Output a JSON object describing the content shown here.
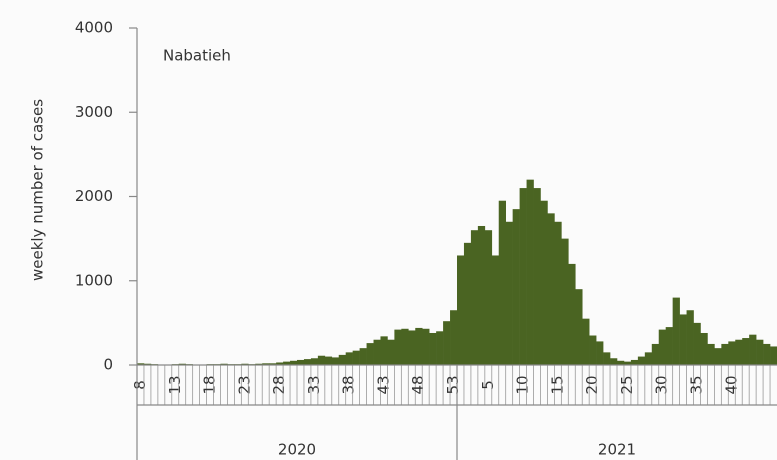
{
  "chart_data": {
    "type": "bar",
    "title": "Nabatieh",
    "ylabel": "weekly number of cases",
    "x_groups": [
      "2020",
      "2021"
    ],
    "categories": [
      "8",
      null,
      null,
      null,
      null,
      "13",
      null,
      null,
      null,
      null,
      "18",
      null,
      null,
      null,
      null,
      "23",
      null,
      null,
      null,
      null,
      "28",
      null,
      null,
      null,
      null,
      "33",
      null,
      null,
      null,
      null,
      "38",
      null,
      null,
      null,
      null,
      "43",
      null,
      null,
      null,
      null,
      "48",
      null,
      null,
      null,
      null,
      "53",
      null,
      null,
      null,
      null,
      "5",
      null,
      null,
      null,
      null,
      "10",
      null,
      null,
      null,
      null,
      "15",
      null,
      null,
      null,
      null,
      "20",
      null,
      null,
      null,
      null,
      "25",
      null,
      null,
      null,
      null,
      "30",
      null,
      null,
      null,
      null,
      "35",
      null,
      null,
      null,
      null,
      "40",
      null,
      null,
      null,
      null,
      null,
      null
    ],
    "values": [
      20,
      15,
      10,
      5,
      5,
      10,
      15,
      10,
      5,
      5,
      10,
      10,
      15,
      10,
      10,
      15,
      10,
      15,
      20,
      20,
      30,
      40,
      50,
      60,
      70,
      80,
      110,
      100,
      90,
      120,
      150,
      170,
      200,
      260,
      300,
      340,
      300,
      420,
      430,
      410,
      440,
      430,
      380,
      400,
      520,
      650,
      1300,
      1450,
      1600,
      1650,
      1600,
      1300,
      1950,
      1700,
      1850,
      2100,
      2200,
      2100,
      1950,
      1800,
      1700,
      1500,
      1200,
      900,
      550,
      350,
      280,
      150,
      80,
      50,
      40,
      60,
      100,
      150,
      250,
      420,
      450,
      800,
      600,
      650,
      500,
      380,
      250,
      200,
      250,
      280,
      300,
      320,
      360,
      300,
      250,
      220
    ],
    "color": "#4a6422",
    "ylim": [
      0,
      4000
    ],
    "yticks": [
      0,
      1000,
      2000,
      3000,
      4000
    ]
  }
}
